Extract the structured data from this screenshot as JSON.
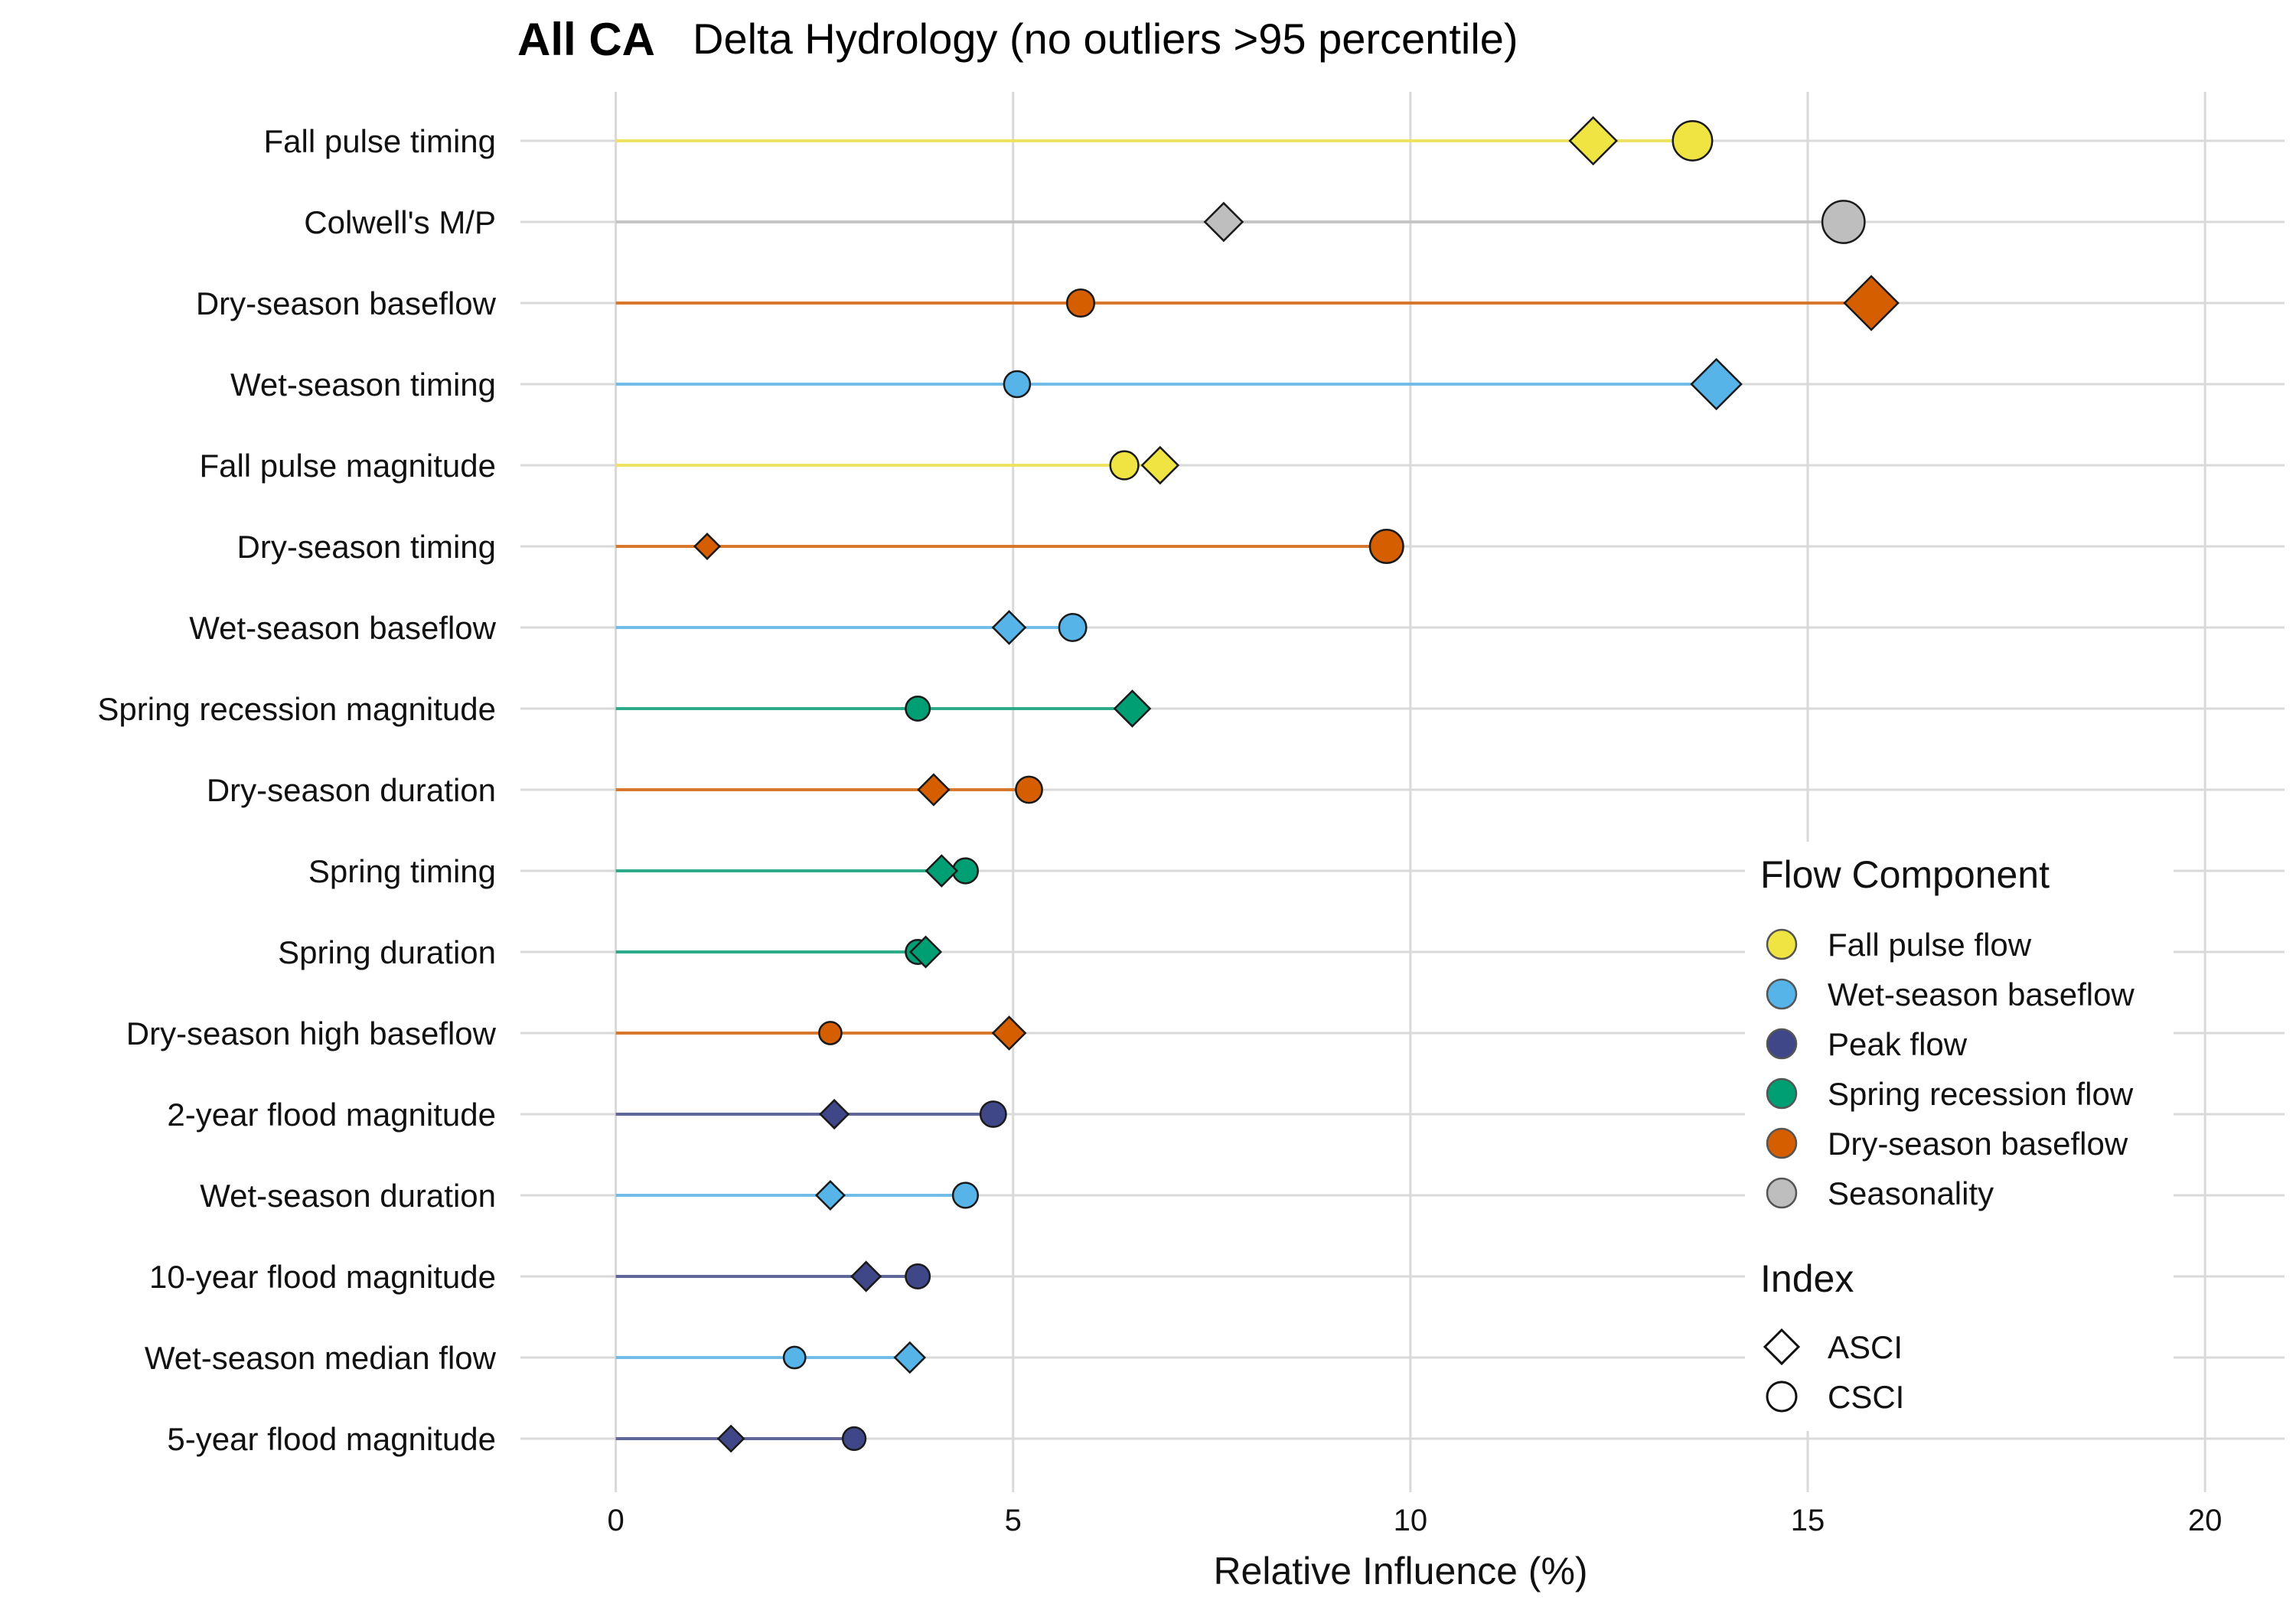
{
  "chart_data": {
    "type": "scatter",
    "title": "All CA",
    "subtitle": "Delta Hydrology (no outliers >95 percentile)",
    "xlabel": "Relative Influence (%)",
    "ylabel": "",
    "xlim": [
      -1.2,
      21.0
    ],
    "xticks": [
      "0",
      "5",
      "10",
      "15",
      "20"
    ],
    "grid": true,
    "legend_position": "right",
    "components": [
      {
        "name": "Fall pulse flow",
        "color": "#F0E442"
      },
      {
        "name": "Wet-season baseflow",
        "color": "#56B4E9"
      },
      {
        "name": "Peak flow",
        "color": "#3F4788"
      },
      {
        "name": "Spring recession flow",
        "color": "#009E73"
      },
      {
        "name": "Dry-season baseflow",
        "color": "#D55E00"
      },
      {
        "name": "Seasonality",
        "color": "#BEBEBE"
      }
    ],
    "legend_component_title": "Flow Component",
    "legend_index_title": "Index",
    "index_entries": [
      {
        "name": "ASCI",
        "shape": "diamond"
      },
      {
        "name": "CSCI",
        "shape": "circle"
      }
    ],
    "metrics": [
      {
        "label": "Fall pulse timing",
        "component": "Fall pulse flow",
        "asci": 12.3,
        "csci": 13.55
      },
      {
        "label": "Colwell's M/P",
        "component": "Seasonality",
        "asci": 7.65,
        "csci": 15.45
      },
      {
        "label": "Dry-season baseflow",
        "component": "Dry-season baseflow",
        "asci": 15.8,
        "csci": 5.85
      },
      {
        "label": "Wet-season timing",
        "component": "Wet-season baseflow",
        "asci": 13.85,
        "csci": 5.05
      },
      {
        "label": "Fall pulse magnitude",
        "component": "Fall pulse flow",
        "asci": 6.85,
        "csci": 6.4
      },
      {
        "label": "Dry-season timing",
        "component": "Dry-season baseflow",
        "asci": 1.15,
        "csci": 9.7
      },
      {
        "label": "Wet-season baseflow",
        "component": "Wet-season baseflow",
        "asci": 4.95,
        "csci": 5.75
      },
      {
        "label": "Spring recession magnitude",
        "component": "Spring recession flow",
        "asci": 6.5,
        "csci": 3.8
      },
      {
        "label": "Dry-season duration",
        "component": "Dry-season baseflow",
        "asci": 4.0,
        "csci": 5.2
      },
      {
        "label": "Spring timing",
        "component": "Spring recession flow",
        "asci": 4.1,
        "csci": 4.4
      },
      {
        "label": "Spring duration",
        "component": "Spring recession flow",
        "asci": 3.9,
        "csci": 3.8
      },
      {
        "label": "Dry-season high baseflow",
        "component": "Dry-season baseflow",
        "asci": 4.95,
        "csci": 2.7
      },
      {
        "label": "2-year flood magnitude",
        "component": "Peak flow",
        "asci": 2.75,
        "csci": 4.75
      },
      {
        "label": "Wet-season duration",
        "component": "Wet-season baseflow",
        "asci": 2.7,
        "csci": 4.4
      },
      {
        "label": "10-year flood magnitude",
        "component": "Peak flow",
        "asci": 3.15,
        "csci": 3.8
      },
      {
        "label": "Wet-season median flow",
        "component": "Wet-season baseflow",
        "asci": 3.7,
        "csci": 2.25
      },
      {
        "label": "5-year flood magnitude",
        "component": "Peak flow",
        "asci": 1.45,
        "csci": 3.0
      }
    ]
  }
}
